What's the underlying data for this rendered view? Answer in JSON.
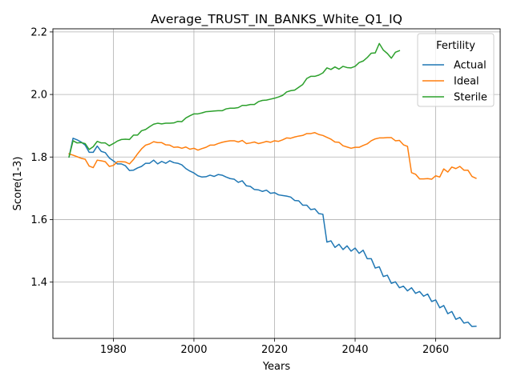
{
  "chart_data": {
    "type": "line",
    "title": "Average_TRUST_IN_BANKS_White_Q1_IQ",
    "xlabel": "Years",
    "ylabel": "Score(1-3)",
    "xlim": [
      1965,
      2076
    ],
    "ylim": [
      1.22,
      2.21
    ],
    "xticks": [
      1980,
      2000,
      2020,
      2040,
      2060
    ],
    "yticks": [
      1.4,
      1.6,
      1.8,
      2.0,
      2.2
    ],
    "xtick_labels": [
      "1980",
      "2000",
      "2020",
      "2040",
      "2060"
    ],
    "ytick_labels": [
      "1.4",
      "1.6",
      "1.8",
      "2.0",
      "2.2"
    ],
    "grid": true,
    "legend": {
      "title": "Fertility",
      "placement": "top-right"
    },
    "series": [
      {
        "name": "Actual",
        "color": "#1f77b4",
        "x": [
          1969,
          1970,
          1971,
          1972,
          1973,
          1974,
          1975,
          1976,
          1977,
          1978,
          1979,
          1980,
          1981,
          1982,
          1983,
          1984,
          1985,
          1986,
          1987,
          1988,
          1989,
          1990,
          1991,
          1992,
          1993,
          1994,
          1995,
          1996,
          1997,
          1998,
          1999,
          2000,
          2001,
          2002,
          2003,
          2004,
          2005,
          2006,
          2007,
          2008,
          2009,
          2010,
          2011,
          2012,
          2013,
          2014,
          2015,
          2016,
          2017,
          2018,
          2019,
          2020,
          2021,
          2022,
          2023,
          2024,
          2025,
          2026,
          2027,
          2028,
          2029,
          2030,
          2031,
          2032,
          2033,
          2034,
          2035,
          2036,
          2037,
          2038,
          2039,
          2040,
          2041,
          2042,
          2043,
          2044,
          2045,
          2046,
          2047,
          2048,
          2049,
          2050,
          2051,
          2052,
          2053,
          2054,
          2055,
          2056,
          2057,
          2058,
          2059,
          2060,
          2061,
          2062,
          2063,
          2064,
          2065,
          2066,
          2067,
          2068,
          2069,
          2070
        ],
        "values": [
          1.8,
          1.86,
          1.855,
          1.848,
          1.838,
          1.815,
          1.815,
          1.835,
          1.818,
          1.814,
          1.797,
          1.788,
          1.778,
          1.778,
          1.772,
          1.757,
          1.758,
          1.765,
          1.77,
          1.78,
          1.78,
          1.79,
          1.778,
          1.786,
          1.78,
          1.788,
          1.782,
          1.78,
          1.775,
          1.763,
          1.755,
          1.749,
          1.74,
          1.736,
          1.737,
          1.742,
          1.738,
          1.744,
          1.742,
          1.736,
          1.731,
          1.729,
          1.719,
          1.724,
          1.708,
          1.706,
          1.696,
          1.695,
          1.69,
          1.694,
          1.684,
          1.686,
          1.679,
          1.677,
          1.675,
          1.672,
          1.661,
          1.66,
          1.646,
          1.646,
          1.632,
          1.634,
          1.619,
          1.617,
          1.528,
          1.532,
          1.511,
          1.521,
          1.504,
          1.516,
          1.499,
          1.509,
          1.492,
          1.502,
          1.475,
          1.475,
          1.445,
          1.449,
          1.418,
          1.422,
          1.396,
          1.401,
          1.382,
          1.387,
          1.372,
          1.382,
          1.364,
          1.37,
          1.355,
          1.362,
          1.338,
          1.343,
          1.318,
          1.325,
          1.299,
          1.306,
          1.281,
          1.287,
          1.269,
          1.272,
          1.258,
          1.259
        ]
      },
      {
        "name": "Ideal",
        "color": "#ff7f0e",
        "x": [
          1969,
          1970,
          1971,
          1972,
          1973,
          1974,
          1975,
          1976,
          1977,
          1978,
          1979,
          1980,
          1981,
          1982,
          1983,
          1984,
          1985,
          1986,
          1987,
          1988,
          1989,
          1990,
          1991,
          1992,
          1993,
          1994,
          1995,
          1996,
          1997,
          1998,
          1999,
          2000,
          2001,
          2002,
          2003,
          2004,
          2005,
          2006,
          2007,
          2008,
          2009,
          2010,
          2011,
          2012,
          2013,
          2014,
          2015,
          2016,
          2017,
          2018,
          2019,
          2020,
          2021,
          2022,
          2023,
          2024,
          2025,
          2026,
          2027,
          2028,
          2029,
          2030,
          2031,
          2032,
          2033,
          2034,
          2035,
          2036,
          2037,
          2038,
          2039,
          2040,
          2041,
          2042,
          2043,
          2044,
          2045,
          2046,
          2047,
          2048,
          2049,
          2050,
          2051,
          2052,
          2053,
          2054,
          2055,
          2056,
          2057,
          2058,
          2059,
          2060,
          2061,
          2062,
          2063,
          2064,
          2065,
          2066,
          2067,
          2068,
          2069,
          2070
        ],
        "values": [
          1.81,
          1.806,
          1.801,
          1.796,
          1.793,
          1.771,
          1.766,
          1.79,
          1.788,
          1.785,
          1.77,
          1.773,
          1.785,
          1.785,
          1.784,
          1.778,
          1.792,
          1.81,
          1.826,
          1.838,
          1.842,
          1.849,
          1.846,
          1.846,
          1.839,
          1.838,
          1.831,
          1.832,
          1.828,
          1.832,
          1.825,
          1.828,
          1.822,
          1.827,
          1.831,
          1.838,
          1.838,
          1.843,
          1.847,
          1.85,
          1.852,
          1.852,
          1.848,
          1.853,
          1.843,
          1.845,
          1.848,
          1.843,
          1.846,
          1.85,
          1.847,
          1.852,
          1.85,
          1.855,
          1.861,
          1.86,
          1.864,
          1.867,
          1.869,
          1.875,
          1.875,
          1.878,
          1.872,
          1.869,
          1.863,
          1.857,
          1.848,
          1.847,
          1.836,
          1.832,
          1.828,
          1.831,
          1.831,
          1.837,
          1.842,
          1.852,
          1.858,
          1.861,
          1.861,
          1.862,
          1.862,
          1.852,
          1.853,
          1.839,
          1.834,
          1.75,
          1.745,
          1.73,
          1.73,
          1.731,
          1.729,
          1.74,
          1.736,
          1.762,
          1.752,
          1.768,
          1.763,
          1.77,
          1.758,
          1.758,
          1.738,
          1.732
        ]
      },
      {
        "name": "Sterile",
        "color": "#2ca02c",
        "x": [
          1969,
          1970,
          1971,
          1972,
          1973,
          1974,
          1975,
          1976,
          1977,
          1978,
          1979,
          1980,
          1981,
          1982,
          1983,
          1984,
          1985,
          1986,
          1987,
          1988,
          1989,
          1990,
          1991,
          1992,
          1993,
          1994,
          1995,
          1996,
          1997,
          1998,
          1999,
          2000,
          2001,
          2002,
          2003,
          2004,
          2005,
          2006,
          2007,
          2008,
          2009,
          2010,
          2011,
          2012,
          2013,
          2014,
          2015,
          2016,
          2017,
          2018,
          2019,
          2020,
          2021,
          2022,
          2023,
          2024,
          2025,
          2026,
          2027,
          2028,
          2029,
          2030,
          2031,
          2032,
          2033,
          2034,
          2035,
          2036,
          2037,
          2038,
          2039,
          2040,
          2041,
          2042,
          2043,
          2044,
          2045,
          2046,
          2047,
          2048,
          2049,
          2050,
          2051
        ],
        "values": [
          1.8,
          1.852,
          1.845,
          1.846,
          1.843,
          1.824,
          1.833,
          1.85,
          1.845,
          1.845,
          1.836,
          1.843,
          1.851,
          1.856,
          1.857,
          1.856,
          1.87,
          1.87,
          1.884,
          1.888,
          1.897,
          1.905,
          1.908,
          1.906,
          1.908,
          1.908,
          1.909,
          1.914,
          1.913,
          1.925,
          1.932,
          1.938,
          1.938,
          1.941,
          1.945,
          1.946,
          1.947,
          1.948,
          1.948,
          1.954,
          1.956,
          1.956,
          1.958,
          1.965,
          1.965,
          1.968,
          1.968,
          1.977,
          1.981,
          1.982,
          1.985,
          1.988,
          1.992,
          1.997,
          2.008,
          2.012,
          2.014,
          2.023,
          2.032,
          2.051,
          2.058,
          2.058,
          2.062,
          2.069,
          2.085,
          2.08,
          2.088,
          2.081,
          2.09,
          2.086,
          2.085,
          2.09,
          2.102,
          2.107,
          2.118,
          2.132,
          2.133,
          2.163,
          2.142,
          2.131,
          2.116,
          2.135,
          2.14
        ]
      }
    ]
  }
}
